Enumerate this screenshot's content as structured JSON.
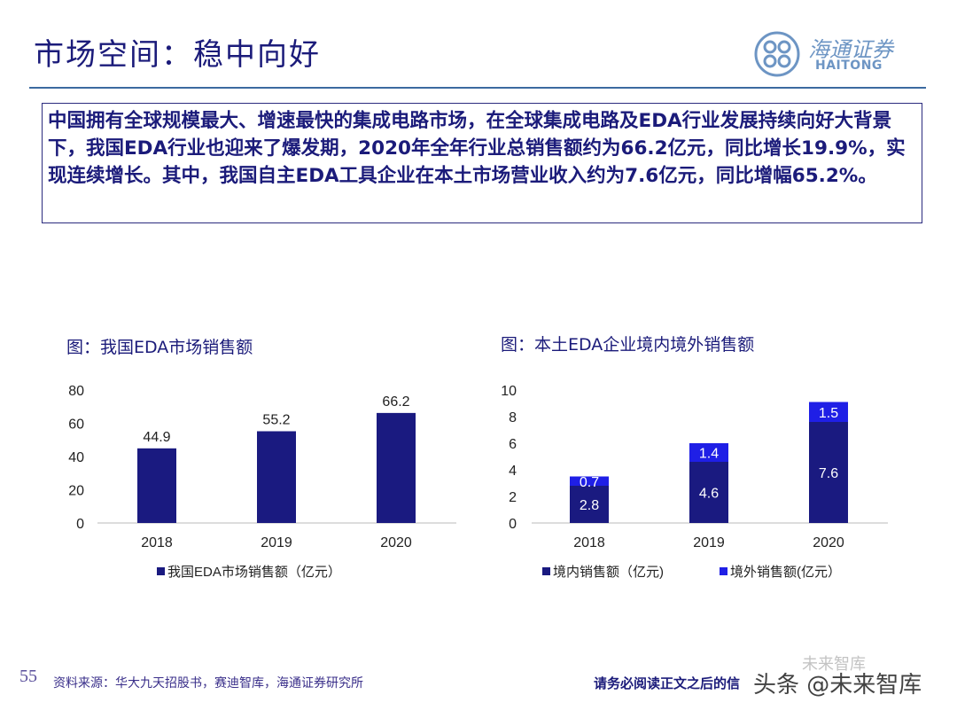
{
  "title": "市场空间：稳中向好",
  "logo": {
    "cn": "海通证券",
    "en": "HAITONG"
  },
  "summary": "中国拥有全球规模最大、增速最快的集成电路市场，在全球集成电路及EDA行业发展持续向好大背景下，我国EDA行业也迎来了爆发期，2020年全年行业总销售额约为66.2亿元，同比增长19.9%，实现连续增长。其中，我国自主EDA工具企业在本土市场营业收入约为7.6亿元，同比增幅65.2%。",
  "chart_data": [
    {
      "type": "bar",
      "title": "图：我国EDA市场销售额",
      "categories": [
        "2018",
        "2019",
        "2020"
      ],
      "series": [
        {
          "name": "我国EDA市场销售额（亿元）",
          "values": [
            44.9,
            55.2,
            66.2
          ],
          "color": "#1a1a80"
        }
      ],
      "ylim": [
        0,
        80
      ],
      "yticks": [
        0,
        20,
        40,
        60,
        80
      ],
      "legend": "bottom"
    },
    {
      "type": "bar",
      "stacked": true,
      "title": "图：本土EDA企业境内境外销售额",
      "categories": [
        "2018",
        "2019",
        "2020"
      ],
      "series": [
        {
          "name": "境内销售额（亿元)",
          "values": [
            2.8,
            4.6,
            7.6
          ],
          "color": "#1a1a80"
        },
        {
          "name": "境外销售额(亿元）",
          "values": [
            0.7,
            1.4,
            1.5
          ],
          "color": "#1f1fe6"
        }
      ],
      "ylim": [
        0,
        10
      ],
      "yticks": [
        0,
        2,
        4,
        6,
        8,
        10
      ],
      "legend": "bottom"
    }
  ],
  "footer": {
    "page": "55",
    "source": "资料来源：华大九天招股书，赛迪智库，海通证券研究所",
    "disclaimer": "请务必阅读正文之后的信",
    "watermark": "头条 @未来智库",
    "watermark2": "未来智库"
  }
}
